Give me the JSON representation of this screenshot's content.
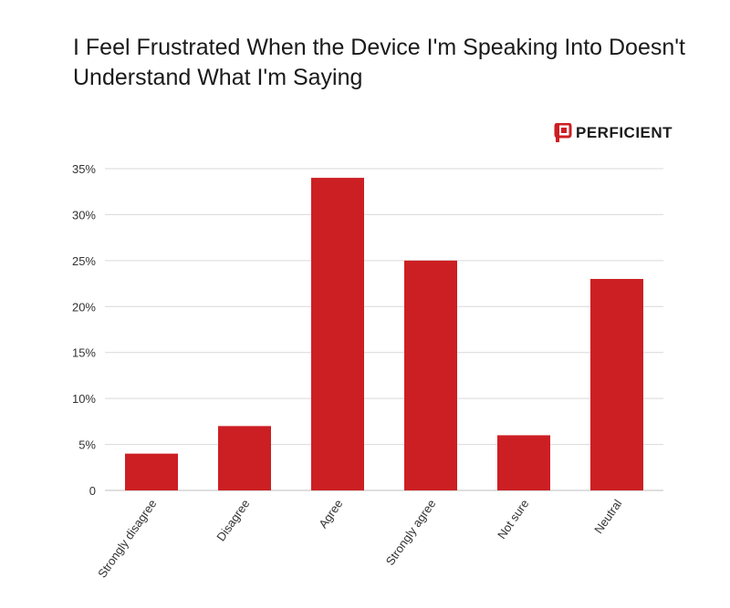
{
  "title": "I Feel Frustrated When the Device I'm Speaking Into Doesn't Understand What I'm Saying",
  "logo": {
    "text": "PERFICIENT",
    "mark_icon": "perficient-logo-icon"
  },
  "colors": {
    "bar": "#cc1f23",
    "grid": "#d9d9d9",
    "logo_red": "#cc1f23"
  },
  "chart_data": {
    "type": "bar",
    "title": "I Feel Frustrated When the Device I'm Speaking Into Doesn't Understand What I'm Saying",
    "categories": [
      "Strongly disagree",
      "Disagree",
      "Agree",
      "Strongly agree",
      "Not sure",
      "Neutral"
    ],
    "values": [
      4,
      7,
      34,
      25,
      6,
      23
    ],
    "unit": "%",
    "ylim": [
      0,
      35
    ],
    "yticks": [
      0,
      5,
      10,
      15,
      20,
      25,
      30,
      35
    ],
    "ytick_labels": [
      "0",
      "5%",
      "10%",
      "15%",
      "20%",
      "25%",
      "30%",
      "35%"
    ],
    "grid": true,
    "legend": "none"
  }
}
